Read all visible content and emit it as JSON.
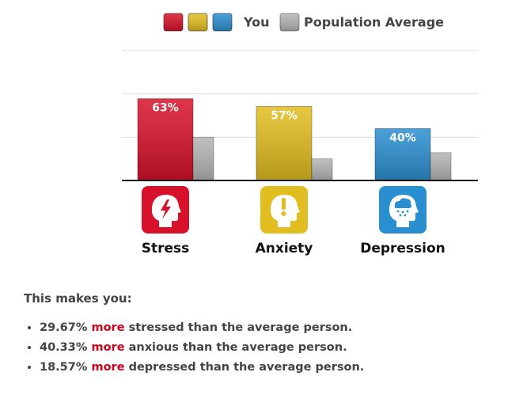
{
  "chart_data": {
    "type": "bar",
    "categories": [
      "Stress",
      "Anxiety",
      "Depression"
    ],
    "series": [
      {
        "name": "You",
        "colors": [
          "#d8112a",
          "#e2bd1f",
          "#2a8fd1"
        ],
        "values": [
          63,
          57,
          40
        ],
        "value_labels": [
          "63%",
          "57%",
          "40%"
        ]
      },
      {
        "name": "Population Average",
        "color": "#b5b5b5",
        "values": [
          33.33,
          16.67,
          21.43
        ]
      }
    ],
    "ylim": [
      0,
      100
    ],
    "yticks": [
      0,
      33.33,
      66.67,
      100
    ],
    "grid": true
  },
  "summary": {
    "heading": "This makes you:",
    "items": [
      {
        "value": "29.67%",
        "emphasis": "more",
        "text": "stressed than the average person."
      },
      {
        "value": "40.33%",
        "emphasis": "more",
        "text": "anxious than the average person."
      },
      {
        "value": "18.57%",
        "emphasis": "more",
        "text": "depressed than the average person."
      }
    ]
  }
}
